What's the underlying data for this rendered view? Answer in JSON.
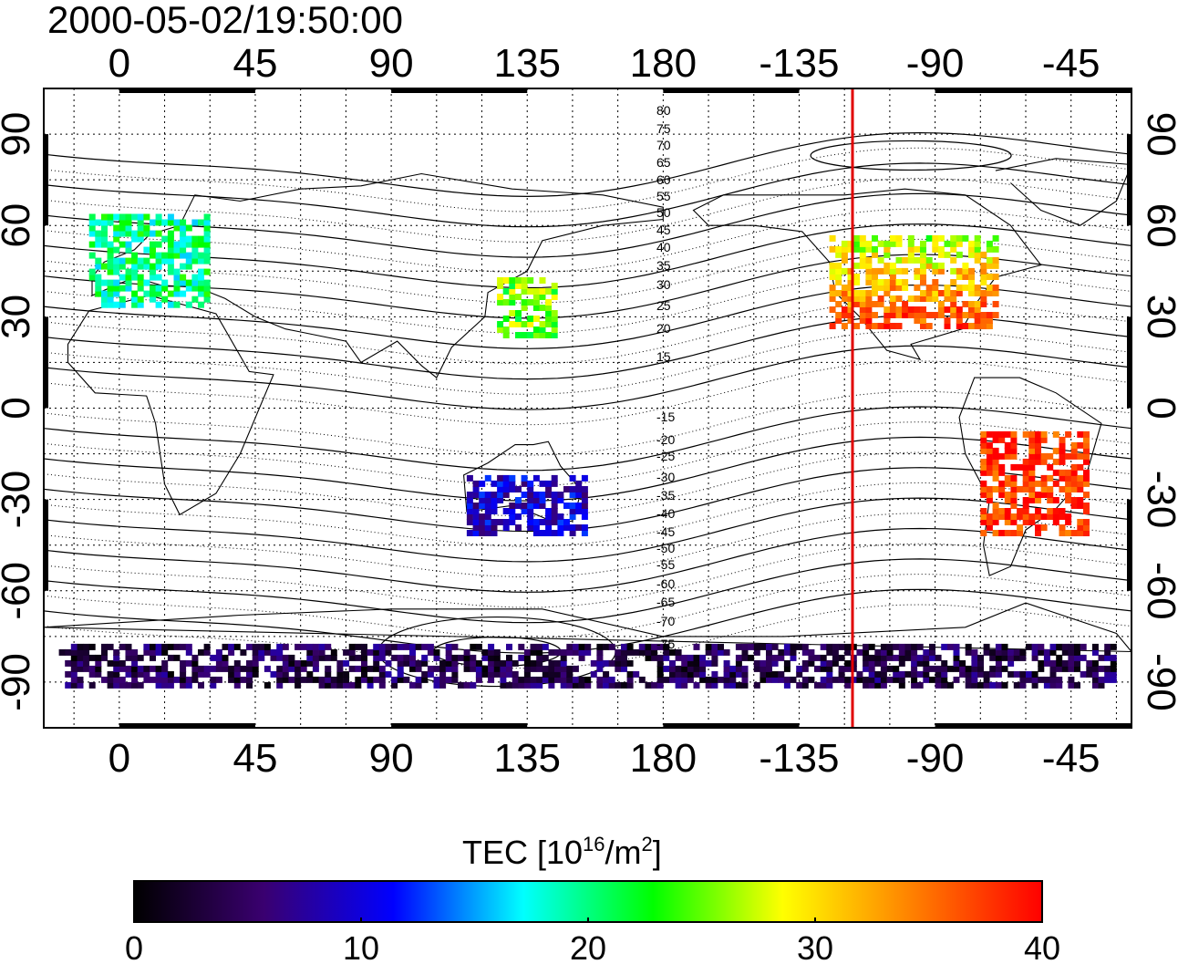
{
  "title": "2000-05-02/19:50:00",
  "map": {
    "x_ticks_top": [
      "0",
      "45",
      "90",
      "135",
      "180",
      "-135",
      "-90",
      "-45"
    ],
    "x_ticks_bottom": [
      "0",
      "45",
      "90",
      "135",
      "180",
      "-135",
      "-90",
      "-45"
    ],
    "y_ticks_left": [
      "90",
      "60",
      "30",
      "0",
      "-30",
      "-60",
      "-90"
    ],
    "y_ticks_right": [
      "90",
      "60",
      "30",
      "0",
      "-30",
      "-60",
      "-90"
    ],
    "x_tick_lons": [
      0,
      45,
      90,
      135,
      180,
      225,
      270,
      315
    ],
    "y_tick_lats": [
      90,
      60,
      30,
      0,
      -30,
      -60,
      -90
    ],
    "lon_range": [
      -25,
      335
    ],
    "lat_range": [
      -105,
      105
    ],
    "terminator_lon": 241,
    "terminator_color": "#e00000",
    "contour_labels_north": [
      "80",
      "75",
      "70",
      "65",
      "60",
      "55",
      "50",
      "45",
      "40",
      "35",
      "30",
      "25",
      "20",
      "15"
    ],
    "contour_labels_south": [
      "-15",
      "-20",
      "-25",
      "-30",
      "-35",
      "-40",
      "-45",
      "-50",
      "-55",
      "-60",
      "-65",
      "-70",
      "-75"
    ]
  },
  "colorbar": {
    "label_main": "TEC  [10",
    "label_exp1": "16",
    "label_unit": "/m",
    "label_exp2": "2",
    "label_close": "]",
    "ticks": [
      "0",
      "10",
      "20",
      "30",
      "40"
    ],
    "min": 0,
    "max": 40,
    "stops": [
      "#000000",
      "#3a0070",
      "#0000ff",
      "#00ffff",
      "#00ff00",
      "#ffff00",
      "#ff8000",
      "#ff0000"
    ]
  },
  "tec_regions": [
    {
      "name": "north-america",
      "lon_range": [
        235,
        290
      ],
      "lat_range": [
        28,
        58
      ],
      "tec": 33
    },
    {
      "name": "south-america",
      "lon_range": [
        285,
        320
      ],
      "lat_range": [
        -40,
        -5
      ],
      "tec": 38
    },
    {
      "name": "europe",
      "lon_range": [
        -10,
        30
      ],
      "lat_range": [
        35,
        65
      ],
      "tec": 20
    },
    {
      "name": "east-asia",
      "lon_range": [
        125,
        145
      ],
      "lat_range": [
        25,
        45
      ],
      "tec": 25
    },
    {
      "name": "australia",
      "lon_range": [
        115,
        155
      ],
      "lat_range": [
        -40,
        -20
      ],
      "tec": 9
    },
    {
      "name": "antarctica",
      "lon_range": [
        -20,
        330
      ],
      "lat_range": [
        -90,
        -75
      ],
      "tec": 4
    }
  ]
}
